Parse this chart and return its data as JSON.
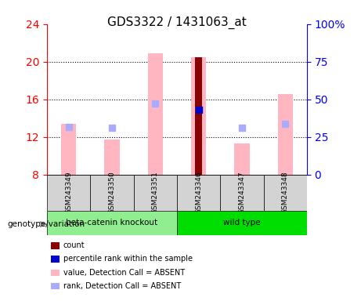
{
  "title": "GDS3322 / 1431063_at",
  "samples": [
    "GSM243349",
    "GSM243350",
    "GSM243351",
    "GSM243346",
    "GSM243347",
    "GSM243348"
  ],
  "groups": {
    "beta-catenin knockout": [
      0,
      1,
      2
    ],
    "wild type": [
      3,
      4,
      5
    ]
  },
  "group_colors": {
    "beta-catenin knockout": "#90EE90",
    "wild type": "#00DD00"
  },
  "ylim_left": [
    8,
    24
  ],
  "ylim_right": [
    0,
    100
  ],
  "yticks_left": [
    8,
    12,
    16,
    20,
    24
  ],
  "yticks_right": [
    0,
    25,
    50,
    75,
    100
  ],
  "ytick_labels_right": [
    "0",
    "25",
    "50",
    "75",
    "100%"
  ],
  "bar_values_pink": [
    13.4,
    11.7,
    20.9,
    20.5,
    11.3,
    16.6
  ],
  "bar_values_darkred": [
    null,
    null,
    null,
    20.5,
    null,
    null
  ],
  "rank_markers_blue_light": [
    13.1,
    13.0,
    15.6,
    null,
    13.0,
    13.4
  ],
  "rank_markers_blue_dark": [
    null,
    null,
    null,
    14.9,
    null,
    null
  ],
  "bar_color_pink": "#FFB6C1",
  "bar_color_darkred": "#8B0000",
  "marker_color_blue_light": "#AAAAFF",
  "marker_color_blue_dark": "#0000CC",
  "bar_width": 0.35,
  "grid_linestyle": "dotted",
  "left_axis_color": "red",
  "right_axis_color": "blue",
  "legend_items": [
    {
      "label": "count",
      "color": "#8B0000"
    },
    {
      "label": "percentile rank within the sample",
      "color": "#0000CC"
    },
    {
      "label": "value, Detection Call = ABSENT",
      "color": "#FFB6C1"
    },
    {
      "label": "rank, Detection Call = ABSENT",
      "color": "#AAAAFF"
    }
  ],
  "group_label": "genotype/variation"
}
